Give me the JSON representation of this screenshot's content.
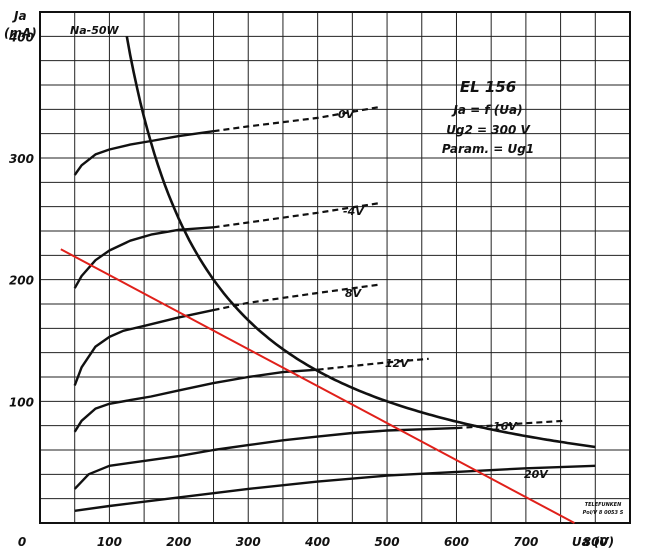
{
  "chart_data": {
    "type": "line",
    "x_axis": {
      "label": "Ua (V)",
      "range": [
        0,
        850
      ],
      "ticks": [
        0,
        100,
        200,
        300,
        400,
        500,
        600,
        700,
        800
      ]
    },
    "y_axis": {
      "label_line1": "Ja",
      "label_line2": "(mA)",
      "range": [
        0,
        420
      ],
      "ticks": [
        100,
        200,
        300,
        400
      ]
    },
    "grid": true,
    "annotation": {
      "title": "EL 156",
      "line1": "Ja = f (Ua)",
      "line2": "Ug2 = 300 V",
      "line3": "Param. = Ug1"
    },
    "footer_text": [
      "TELEFUNKEN",
      "Pol/V 8 0053 S"
    ],
    "series": [
      {
        "name": "0V",
        "solid": [
          [
            50,
            286
          ],
          [
            60,
            294
          ],
          [
            80,
            303
          ],
          [
            100,
            307
          ],
          [
            130,
            311
          ],
          [
            160,
            314
          ],
          [
            200,
            318
          ],
          [
            250,
            322
          ]
        ],
        "dashed": [
          [
            250,
            322
          ],
          [
            300,
            326
          ],
          [
            400,
            333
          ],
          [
            490,
            342
          ]
        ]
      },
      {
        "name": "-4V",
        "solid": [
          [
            50,
            193
          ],
          [
            60,
            203
          ],
          [
            80,
            216
          ],
          [
            100,
            224
          ],
          [
            130,
            232
          ],
          [
            160,
            237
          ],
          [
            200,
            241
          ],
          [
            250,
            243
          ]
        ],
        "dashed": [
          [
            250,
            243
          ],
          [
            300,
            247
          ],
          [
            400,
            255
          ],
          [
            490,
            263
          ]
        ]
      },
      {
        "name": "8V",
        "solid": [
          [
            50,
            113
          ],
          [
            60,
            128
          ],
          [
            80,
            145
          ],
          [
            100,
            153
          ],
          [
            120,
            158
          ],
          [
            150,
            162
          ],
          [
            200,
            169
          ],
          [
            250,
            175
          ]
        ],
        "dashed": [
          [
            250,
            175
          ],
          [
            300,
            181
          ],
          [
            400,
            189
          ],
          [
            490,
            196
          ]
        ]
      },
      {
        "name": "12V",
        "solid": [
          [
            50,
            75
          ],
          [
            60,
            84
          ],
          [
            80,
            94
          ],
          [
            100,
            98
          ],
          [
            130,
            101
          ],
          [
            160,
            104
          ],
          [
            200,
            109
          ],
          [
            250,
            115
          ],
          [
            300,
            120
          ],
          [
            350,
            124
          ],
          [
            400,
            126
          ]
        ],
        "dashed": [
          [
            400,
            126
          ],
          [
            450,
            129
          ],
          [
            500,
            132
          ],
          [
            560,
            135
          ]
        ]
      },
      {
        "name": "16V",
        "solid": [
          [
            50,
            28
          ],
          [
            70,
            40
          ],
          [
            100,
            47
          ],
          [
            150,
            51
          ],
          [
            200,
            55
          ],
          [
            250,
            60
          ],
          [
            300,
            64
          ],
          [
            350,
            68
          ],
          [
            400,
            71
          ],
          [
            450,
            74
          ],
          [
            500,
            76
          ],
          [
            550,
            77
          ],
          [
            600,
            78
          ]
        ],
        "dashed": [
          [
            600,
            78
          ],
          [
            650,
            80
          ],
          [
            700,
            82
          ],
          [
            755,
            84
          ]
        ]
      },
      {
        "name": "20V",
        "solid": [
          [
            50,
            10
          ],
          [
            100,
            14
          ],
          [
            200,
            21
          ],
          [
            300,
            28
          ],
          [
            400,
            34
          ],
          [
            500,
            39
          ],
          [
            600,
            42
          ],
          [
            700,
            45
          ],
          [
            800,
            47
          ]
        ],
        "dashed": []
      }
    ],
    "power_hyperbola": {
      "label": "Na-50W",
      "watts": 50,
      "x_from": 125,
      "x_to": 800
    },
    "load_line": {
      "color": "#e0201a",
      "points": [
        [
          30,
          225
        ],
        [
          770,
          0
        ]
      ]
    }
  }
}
